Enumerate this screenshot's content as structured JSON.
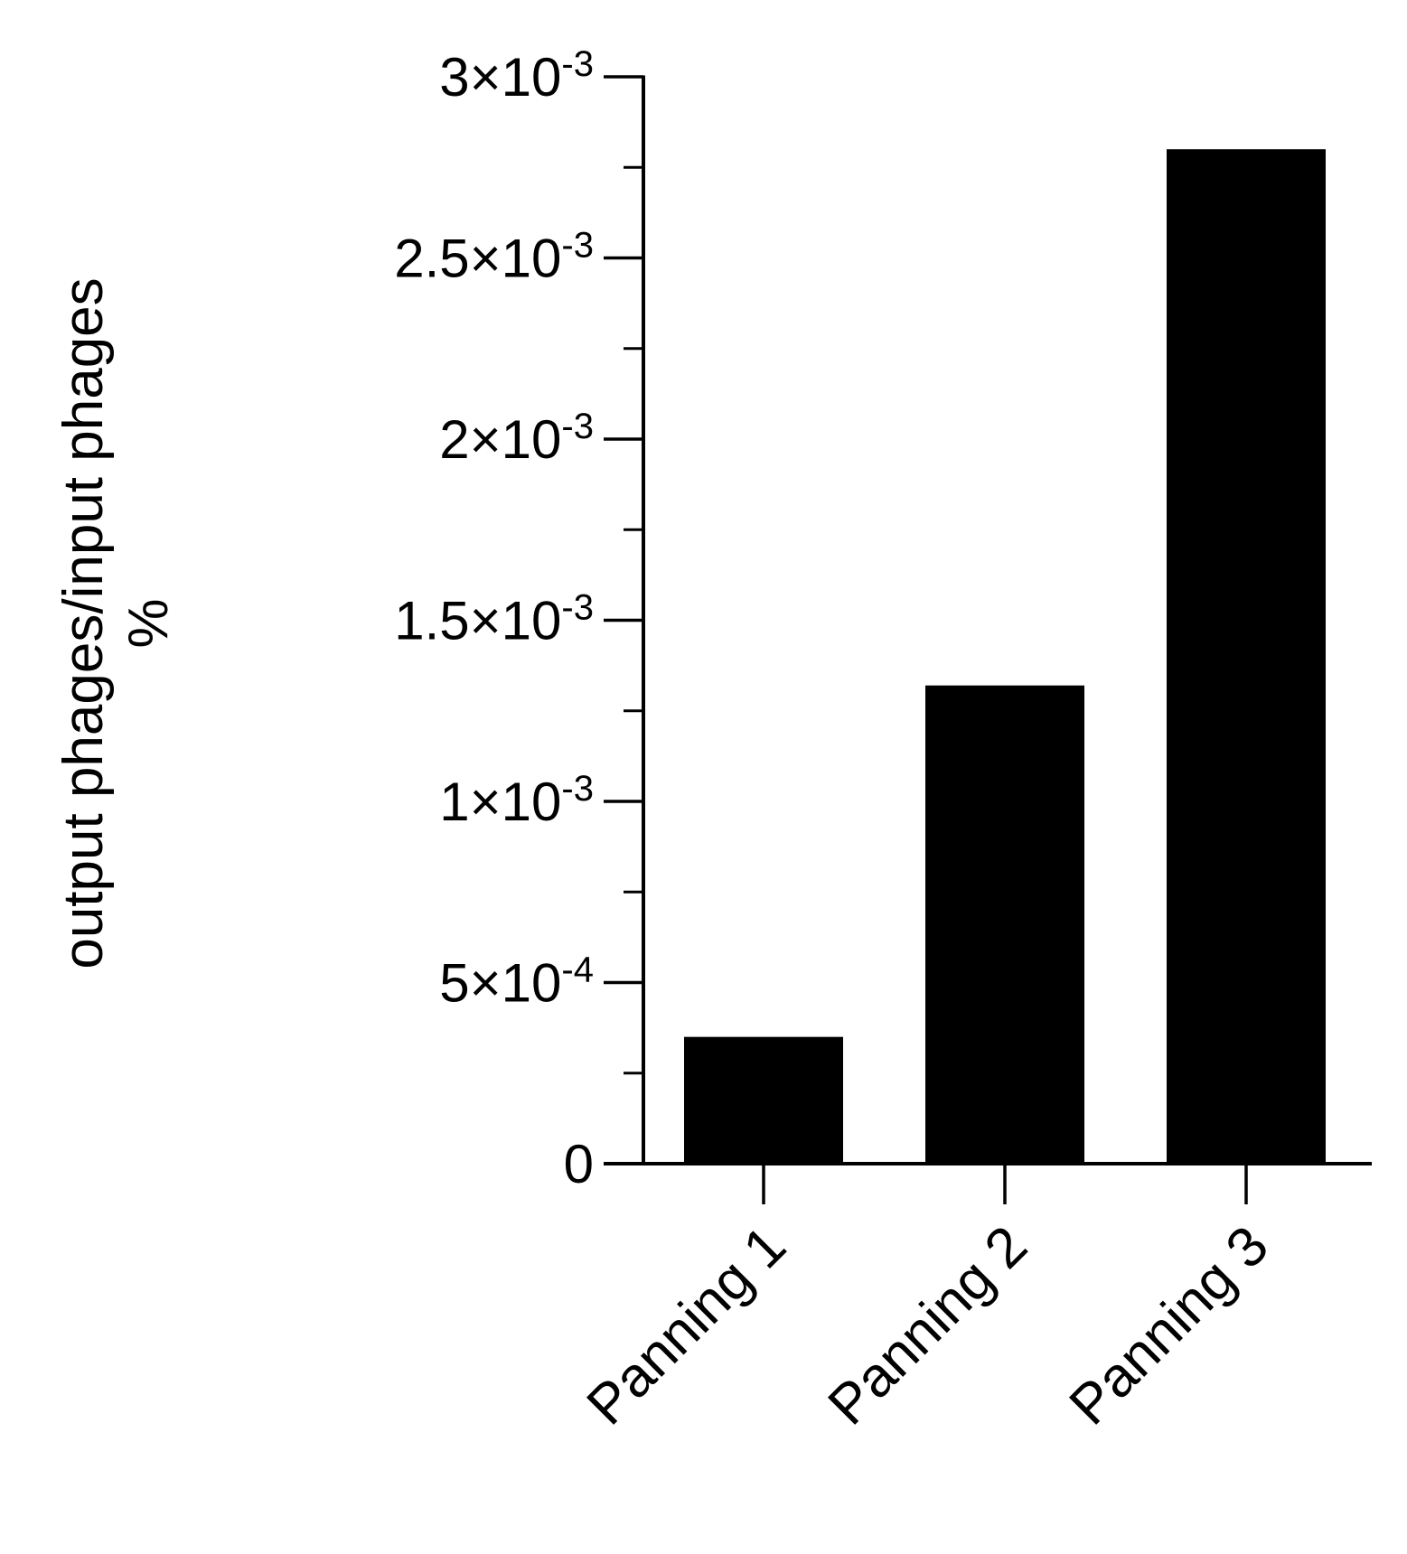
{
  "chart_data": {
    "type": "bar",
    "title": "",
    "xlabel": "",
    "ylabel": "output phages/input phages",
    "ylabel_line2": "%",
    "categories": [
      "Panning 1",
      "Panning 2",
      "Panning 3"
    ],
    "values": [
      0.00035,
      0.00132,
      0.0028
    ],
    "ylim": [
      0,
      0.003
    ],
    "major_ticks": [
      {
        "value": 0,
        "mantissa": "0",
        "exponent": ""
      },
      {
        "value": 0.0005,
        "mantissa": "5×10",
        "exponent": "-4"
      },
      {
        "value": 0.001,
        "mantissa": "1×10",
        "exponent": "-3"
      },
      {
        "value": 0.0015,
        "mantissa": "1.5×10",
        "exponent": "-3"
      },
      {
        "value": 0.002,
        "mantissa": "2×10",
        "exponent": "-3"
      },
      {
        "value": 0.0025,
        "mantissa": "2.5×10",
        "exponent": "-3"
      },
      {
        "value": 0.003,
        "mantissa": "3×10",
        "exponent": "-3"
      }
    ],
    "minor_ticks": [
      0.00025,
      0.00075,
      0.00125,
      0.00175,
      0.00225,
      0.00275
    ],
    "bar_color": "#000000",
    "grid": false,
    "legend": "none"
  }
}
